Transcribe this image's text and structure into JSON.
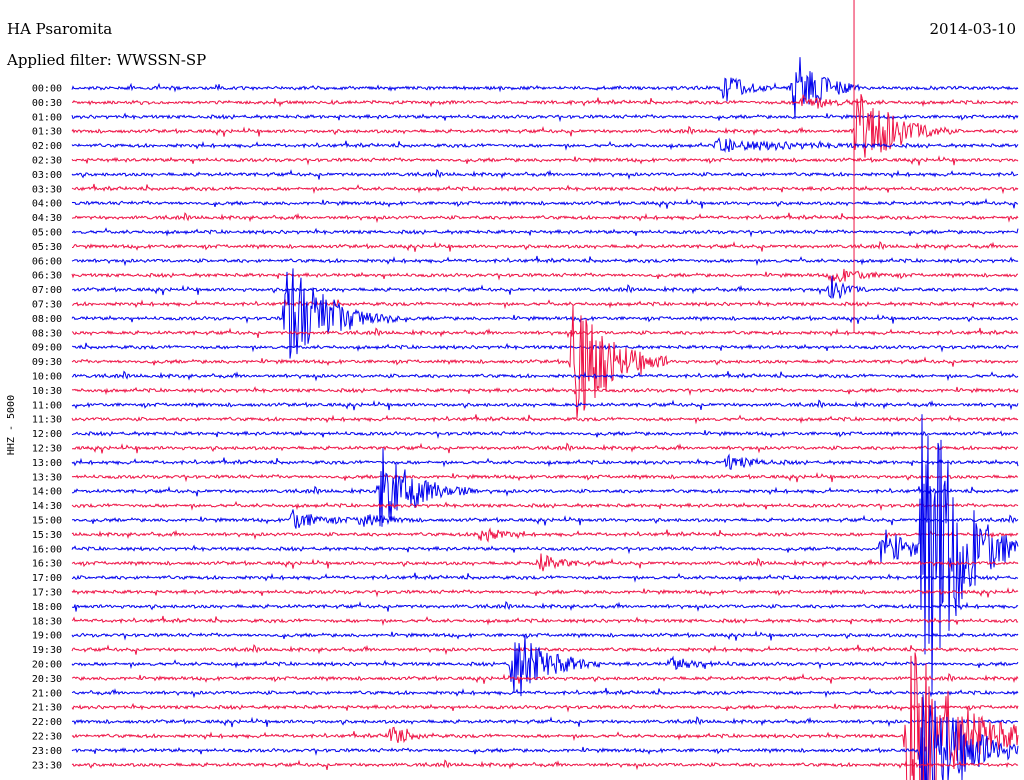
{
  "header": {
    "station": "HA Psaromita",
    "filter": "Applied filter: WWSSN-SP",
    "date": "2014-03-10"
  },
  "colors": {
    "trace_a": "#0000ee",
    "trace_b": "#ee1144",
    "marker": "#ee1144",
    "text": "#000000"
  },
  "chart_data": {
    "type": "helicorder",
    "ylabel": "HHZ - 5000",
    "trace_minutes": 30,
    "row_labels": [
      "00:00",
      "00:30",
      "01:00",
      "01:30",
      "02:00",
      "02:30",
      "03:00",
      "03:30",
      "04:00",
      "04:30",
      "05:00",
      "05:30",
      "06:00",
      "06:30",
      "07:00",
      "07:30",
      "08:00",
      "08:30",
      "09:00",
      "09:30",
      "10:00",
      "10:30",
      "11:00",
      "11:30",
      "12:00",
      "12:30",
      "13:00",
      "13:30",
      "14:00",
      "14:30",
      "15:00",
      "15:30",
      "16:00",
      "16:30",
      "17:00",
      "17:30",
      "18:00",
      "18:30",
      "19:00",
      "19:30",
      "20:00",
      "20:30",
      "21:00",
      "21:30",
      "22:00",
      "22:30",
      "23:00",
      "23:30"
    ],
    "marker_minute": 24.8,
    "events": [
      {
        "row": 0,
        "minute": 20.7,
        "amplitude": 18,
        "duration_min": 0.5
      },
      {
        "row": 0,
        "minute": 22.9,
        "amplitude": 40,
        "duration_min": 0.7
      },
      {
        "row": 1,
        "minute": 23.1,
        "amplitude": 7,
        "duration_min": 0.9
      },
      {
        "row": 4,
        "minute": 20.5,
        "amplitude": 6,
        "duration_min": 2.0
      },
      {
        "row": 3,
        "minute": 24.9,
        "amplitude": 50,
        "duration_min": 1.0
      },
      {
        "row": 13,
        "minute": 24.1,
        "amplitude": 8,
        "duration_min": 0.8
      },
      {
        "row": 14,
        "minute": 24.1,
        "amplitude": 14,
        "duration_min": 0.4
      },
      {
        "row": 16,
        "minute": 6.8,
        "amplitude": 60,
        "duration_min": 1.2
      },
      {
        "row": 19,
        "minute": 15.9,
        "amplitude": 70,
        "duration_min": 1.0
      },
      {
        "row": 28,
        "minute": 9.8,
        "amplitude": 45,
        "duration_min": 1.0
      },
      {
        "row": 30,
        "minute": 7.0,
        "amplitude": 10,
        "duration_min": 0.8
      },
      {
        "row": 30,
        "minute": 9.2,
        "amplitude": 8,
        "duration_min": 0.6
      },
      {
        "row": 31,
        "minute": 12.9,
        "amplitude": 10,
        "duration_min": 0.5
      },
      {
        "row": 32,
        "minute": 25.7,
        "amplitude": 22,
        "duration_min": 0.7
      },
      {
        "row": 32,
        "minute": 27.0,
        "amplitude": 190,
        "duration_min": 1.0
      },
      {
        "row": 33,
        "minute": 14.8,
        "amplitude": 10,
        "duration_min": 0.6
      },
      {
        "row": 26,
        "minute": 20.8,
        "amplitude": 7,
        "duration_min": 0.7
      },
      {
        "row": 40,
        "minute": 14.0,
        "amplitude": 42,
        "duration_min": 0.9
      },
      {
        "row": 40,
        "minute": 19.0,
        "amplitude": 6,
        "duration_min": 0.8
      },
      {
        "row": 45,
        "minute": 10.1,
        "amplitude": 10,
        "duration_min": 0.5
      },
      {
        "row": 45,
        "minute": 26.5,
        "amplitude": 110,
        "duration_min": 1.4
      },
      {
        "row": 46,
        "minute": 27.0,
        "amplitude": 70,
        "duration_min": 1.2
      }
    ]
  }
}
